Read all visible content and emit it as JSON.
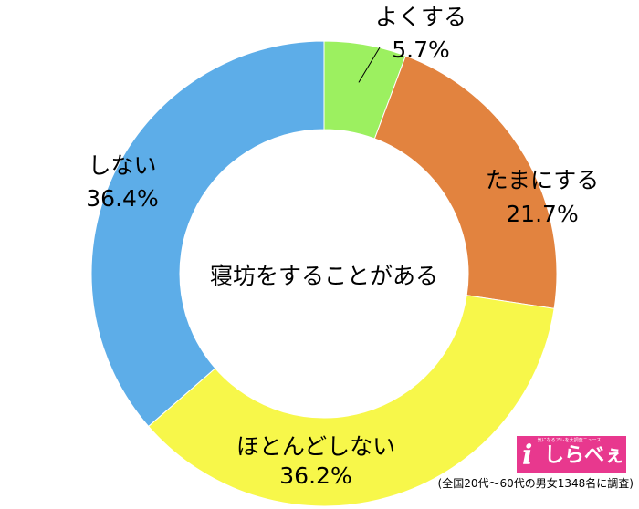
{
  "chart_data": {
    "type": "pie",
    "title": "寝坊をすることがある",
    "categories": [
      "よくする",
      "たまにする",
      "ほとんどしない",
      "しない"
    ],
    "values": [
      5.7,
      21.7,
      36.2,
      36.4
    ],
    "value_labels": [
      "5.7%",
      "21.7%",
      "36.2%",
      "36.4%"
    ],
    "colors": [
      "#9cf060",
      "#e2833f",
      "#f7f74a",
      "#5dade8"
    ],
    "unit": "%",
    "start": "top",
    "direction": "clockwise",
    "style": "donut"
  },
  "logo": {
    "tagline": "気になるアレを大調査ニュース！",
    "mark": "i",
    "name": "しらべぇ",
    "color": "#e8388e"
  },
  "source_note": "(全国20代〜60代の男女1348名に調査)"
}
